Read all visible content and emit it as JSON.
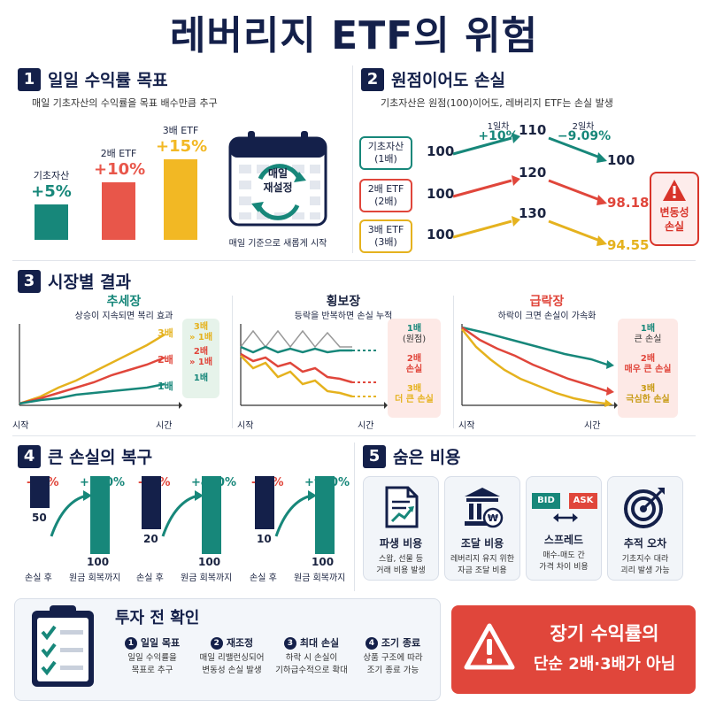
{
  "title": "레버리지 ETF의 위험",
  "s1": {
    "num": "1",
    "title": "일일 수익률 목표",
    "subtitle": "매일 기초자산의 수익률을 목표 배수만큼 추구",
    "bars": [
      {
        "label": "기초자산",
        "value": "+5%",
        "pct": 5,
        "color": "#17877a"
      },
      {
        "label": "2배 ETF",
        "value": "+10%",
        "pct": 10,
        "color": "#e8564a"
      },
      {
        "label": "3배 ETF",
        "value": "+15%",
        "pct": 15,
        "color": "#f2b824"
      }
    ],
    "calendar_text_1": "매일",
    "calendar_text_2": "재설정",
    "calendar_caption": "매일 기준으로 새롭게 시작"
  },
  "s2": {
    "num": "2",
    "title": "원점이어도 손실",
    "subtitle": "기초자산은 원점(100)이어도, 레버리지 ETF는 손실 발생",
    "day1_label": "1일차",
    "day1_value": "+10%",
    "day2_label": "2일차",
    "day2_value": "−9.09%",
    "rows": [
      {
        "name1": "기초자산",
        "name2": "(1배)",
        "start": "100",
        "mid": "110",
        "end": "100",
        "color": "#17877a"
      },
      {
        "name1": "2배 ETF",
        "name2": "(2배)",
        "start": "100",
        "mid": "120",
        "end": "98.18",
        "color": "#e0463b"
      },
      {
        "name1": "3배 ETF",
        "name2": "(3배)",
        "start": "100",
        "mid": "130",
        "end": "94.55",
        "color": "#e5b21e"
      }
    ],
    "warning_1": "변동성",
    "warning_2": "손실"
  },
  "s3": {
    "num": "3",
    "title": "시장별 결과",
    "trend": {
      "title": "추세장",
      "subtitle": "상승이 지속되면 복리 효과",
      "x_start": "시작",
      "x_end": "시간",
      "line_labels": [
        "3배",
        "2배",
        "1배"
      ],
      "legend": [
        {
          "a": "3배",
          "b": "» 1배"
        },
        {
          "a": "2배",
          "b": "» 1배"
        },
        {
          "a": "1배",
          "b": ""
        }
      ]
    },
    "sideways": {
      "title": "횡보장",
      "subtitle": "등락을 반복하면 손실 누적",
      "x_start": "시작",
      "x_end": "시간",
      "legend": [
        {
          "a": "1배",
          "b": "(원점)"
        },
        {
          "a": "2배",
          "b": "손실"
        },
        {
          "a": "3배",
          "b": "더 큰 손실"
        }
      ]
    },
    "crash": {
      "title": "급락장",
      "subtitle": "하락이 크면 손실이 가속화",
      "x_start": "시작",
      "x_end": "시간",
      "legend": [
        {
          "a": "1배",
          "b": "큰 손실"
        },
        {
          "a": "2배",
          "b": "매우 큰 손실"
        },
        {
          "a": "3배",
          "b": "극심한 손실"
        }
      ]
    }
  },
  "s4": {
    "num": "4",
    "title": "큰 손실의 복구",
    "cases": [
      {
        "loss": "-50%",
        "gain": "+100%",
        "low": "50",
        "high": "100",
        "after": "손실 후",
        "recover": "원금 회복까지",
        "lowfrac": 0.5
      },
      {
        "loss": "-80%",
        "gain": "+400%",
        "low": "20",
        "high": "100",
        "after": "손실 후",
        "recover": "원금 회복까지",
        "lowfrac": 0.2
      },
      {
        "loss": "-90%",
        "gain": "+900%",
        "low": "10",
        "high": "100",
        "after": "손실 후",
        "recover": "원금 회복까지",
        "lowfrac": 0.1
      }
    ]
  },
  "s5": {
    "num": "5",
    "title": "숨은 비용",
    "cards": [
      {
        "title": "파생 비용",
        "d1": "스왑, 선물 등",
        "d2": "거래 비용 발생"
      },
      {
        "title": "조달 비용",
        "d1": "레버리지 유지 위한",
        "d2": "자금 조달 비용"
      },
      {
        "title": "스프레드",
        "d1": "매수-매도 간",
        "d2": "가격 차이 비용",
        "bid": "BID",
        "ask": "ASK"
      },
      {
        "title": "추적 오차",
        "d1": "기초지수 대라",
        "d2": "괴리 발생 가능"
      }
    ]
  },
  "check": {
    "title": "투자 전 확인",
    "items": [
      {
        "n": "1",
        "h": "일일 목표",
        "d1": "일일 수익률을",
        "d2": "목표로 추구"
      },
      {
        "n": "2",
        "h": "재조정",
        "d1": "매일 리밸런싱되어",
        "d2": "변동성 손실 발생"
      },
      {
        "n": "3",
        "h": "최대 손실",
        "d1": "하락 시 손실이",
        "d2": "기하급수적으로 확대"
      },
      {
        "n": "4",
        "h": "조기 종료",
        "d1": "상품 구조에 따라",
        "d2": "조기 종료 가능"
      }
    ]
  },
  "banner": {
    "line1": "장기 수익률의",
    "line2": "단순 2배·3배가 아님"
  }
}
